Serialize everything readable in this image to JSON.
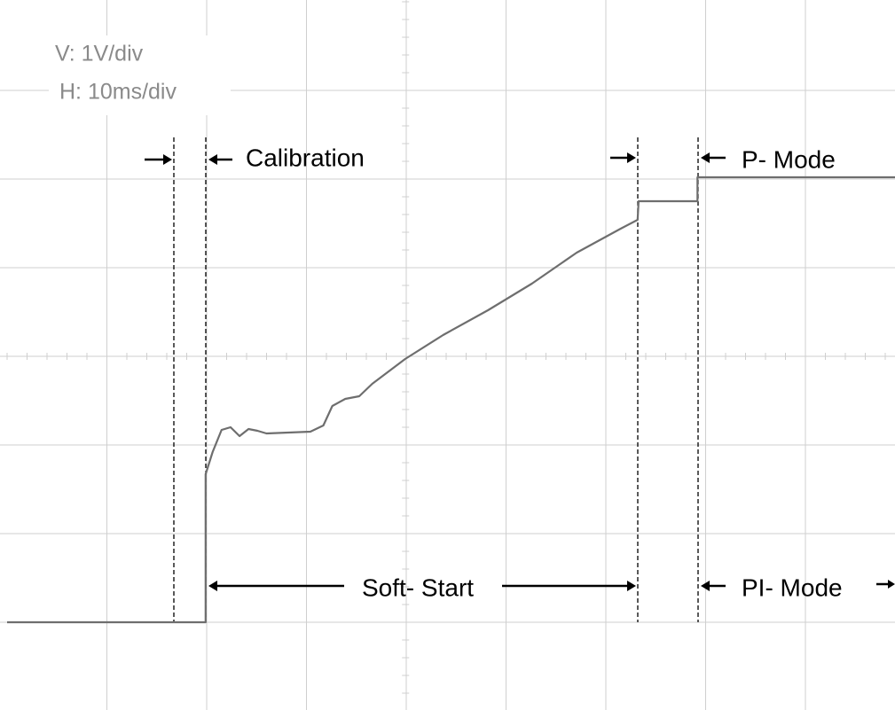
{
  "chart_data": {
    "type": "line",
    "annotations": [
      "V: 1V/div",
      "H: 10ms/div",
      "Calibration",
      "P- Mode",
      "Soft- Start",
      "PI- Mode"
    ],
    "x": [
      0,
      19.9,
      19.9,
      20.6,
      21.5,
      22.4,
      23.3,
      24.2,
      25.1,
      26.0,
      30.4,
      31.7,
      32.6,
      33.9,
      35.3,
      36.6,
      39.9,
      43.7,
      48.2,
      52.6,
      57.1,
      61.5,
      63.2,
      63.3,
      69.2,
      69.2,
      89
    ],
    "values": [
      1.0,
      1.0,
      2.67,
      2.92,
      3.17,
      3.2,
      3.1,
      3.18,
      3.16,
      3.13,
      3.15,
      3.22,
      3.44,
      3.52,
      3.55,
      3.69,
      3.97,
      4.24,
      4.52,
      4.82,
      5.17,
      5.44,
      5.54,
      5.75,
      5.75,
      6.02,
      6.02
    ],
    "color": "#6e6e6e",
    "xlim": [
      0,
      89
    ],
    "ylim": [
      0,
      8
    ]
  }
}
